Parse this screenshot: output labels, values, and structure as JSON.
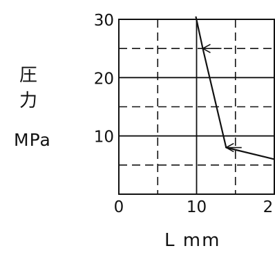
{
  "chart_data": {
    "type": "line",
    "title": "",
    "ylabel_char1": "圧",
    "ylabel_char2": "力",
    "ylabel_unit": "MPa",
    "xlabel": "L mm",
    "x_ticks": [
      "0",
      "10",
      "2"
    ],
    "y_ticks": [
      "10",
      "20",
      "30"
    ],
    "xlim": [
      0,
      20
    ],
    "ylim": [
      0,
      30
    ],
    "grid": {
      "solid_y": [
        10,
        20
      ],
      "dashed_y": [
        5,
        15,
        25
      ],
      "solid_x": [
        10
      ],
      "dashed_x": [
        5,
        15
      ]
    },
    "series": [
      {
        "points": [
          [
            9.9,
            30.5
          ],
          [
            10.8,
            25
          ],
          [
            13.8,
            8
          ],
          [
            20,
            6
          ]
        ]
      }
    ],
    "arrows": [
      {
        "at": [
          10.8,
          25
        ],
        "from": [
          13.2,
          25
        ]
      },
      {
        "at": [
          13.8,
          8
        ],
        "from": [
          15.8,
          8
        ]
      }
    ]
  }
}
